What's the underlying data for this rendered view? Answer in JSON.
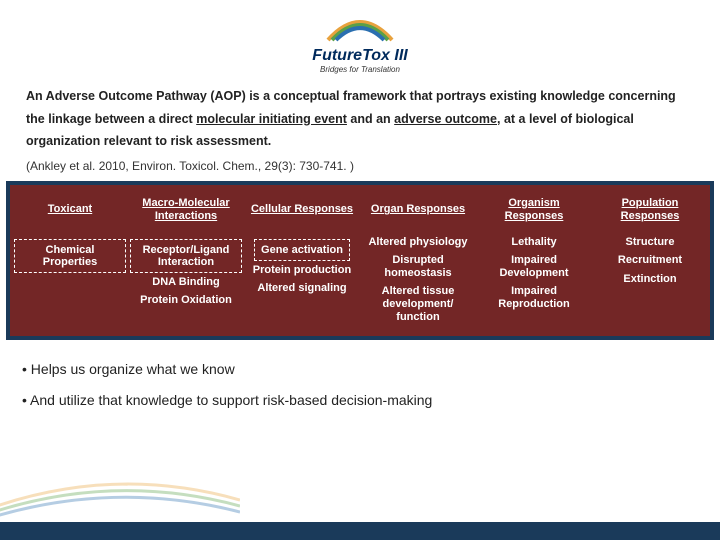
{
  "logo": {
    "main": "FutureTox III",
    "sub": "Bridges for Translation",
    "arc_colors": [
      "#e8a23d",
      "#5aa048",
      "#2a6fb0"
    ]
  },
  "intro": {
    "line1a": "An Adverse Outcome Pathway (AOP) is a conceptual framework that portrays existing knowledge concerning",
    "line2a": "the linkage between a direct ",
    "mie": "molecular initiating event",
    "line2b": " and an ",
    "ao": "adverse outcome",
    "line2c": ", at a level of biological",
    "line3": "organization relevant to risk assessment."
  },
  "citation": "(Ankley et al. 2010, Environ. Toxicol. Chem., 29(3): 730-741. )",
  "diagram": {
    "bg_color": "#732626",
    "border_color": "#1a3a5a",
    "columns": [
      {
        "header": "Toxicant",
        "boxed_items": [
          "Chemical Properties"
        ],
        "items": []
      },
      {
        "header": "Macro-Molecular Interactions",
        "boxed_items": [
          "Receptor/Ligand Interaction"
        ],
        "items": [
          "DNA Binding",
          "Protein Oxidation"
        ]
      },
      {
        "header": "Cellular Responses",
        "boxed_items": [
          "Gene activation"
        ],
        "items": [
          "Protein production",
          "Altered signaling"
        ]
      },
      {
        "header": "Organ Responses",
        "boxed_items": [],
        "items": [
          "Altered physiology",
          "Disrupted homeostasis",
          "Altered tissue development/ function"
        ]
      },
      {
        "header": "Organism Responses",
        "boxed_items": [],
        "items": [
          "Lethality",
          "Impaired Development",
          "Impaired Reproduction"
        ]
      },
      {
        "header": "Population Responses",
        "boxed_items": [],
        "items": [
          "Structure",
          "Recruitment",
          "Extinction"
        ]
      }
    ]
  },
  "bullets": {
    "b1": "• Helps us organize what we know",
    "b2": "• And utilize that knowledge to support risk-based decision-making"
  }
}
